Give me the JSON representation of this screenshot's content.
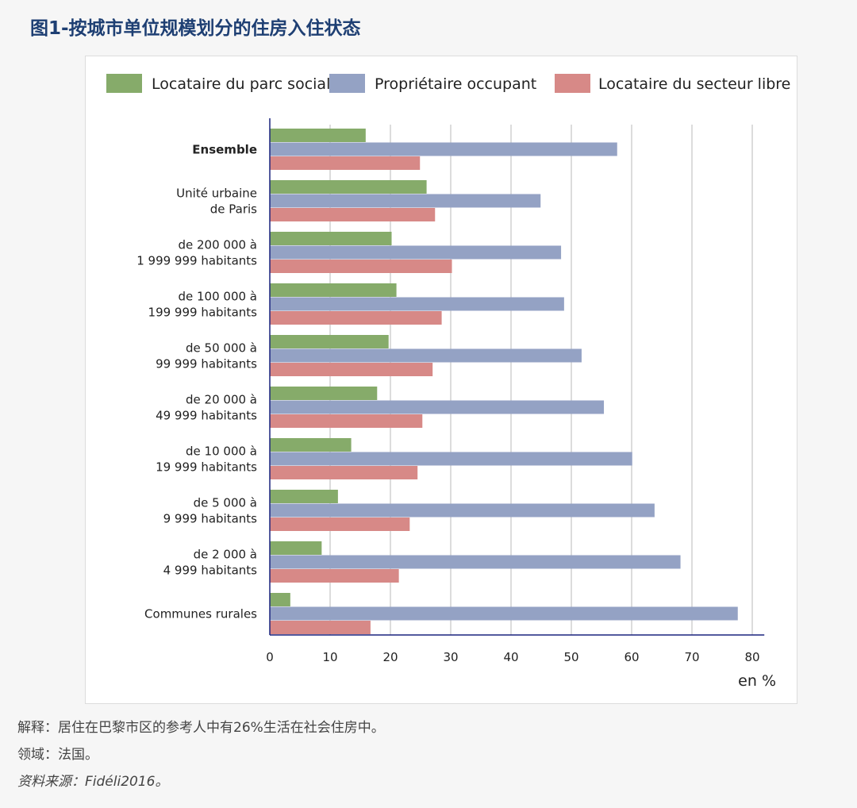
{
  "title": "图1-按城市单位规模划分的住房入住状态",
  "chart_data": {
    "type": "bar",
    "orientation": "horizontal",
    "categories": [
      "Ensemble",
      "Unité urbaine\nde Paris",
      "de 200 000 à\n1 999 999 habitants",
      "de 100 000 à\n199 999 habitants",
      "de 50 000 à\n99 999 habitants",
      "de 20 000 à\n49 999 habitants",
      "de 10 000 à\n19 999 habitants",
      "de 5 000 à\n9 999 habitants",
      "de 2 000 à\n4 999 habitants",
      "Communes rurales"
    ],
    "series": [
      {
        "name": "Locataire du parc social",
        "color": "#86ab6a",
        "values": [
          15.9,
          26.0,
          20.2,
          21.0,
          19.7,
          17.8,
          13.5,
          11.3,
          8.6,
          3.4
        ]
      },
      {
        "name": "Propriétaire occupant",
        "color": "#94a2c4",
        "values": [
          57.6,
          44.9,
          48.3,
          48.8,
          51.7,
          55.4,
          60.1,
          63.8,
          68.1,
          77.6
        ]
      },
      {
        "name": "Locataire du secteur libre",
        "color": "#d78987",
        "values": [
          24.9,
          27.4,
          30.2,
          28.5,
          27.0,
          25.3,
          24.5,
          23.2,
          21.4,
          16.7
        ]
      }
    ],
    "xlim": [
      0,
      82
    ],
    "xticks": [
      0,
      10,
      20,
      30,
      40,
      50,
      60,
      70,
      80
    ],
    "xlabel": "en %",
    "grid": true,
    "legend": "top",
    "bold_categories": [
      "Ensemble"
    ]
  },
  "notes": {
    "interpretation": "解释：居住在巴黎市区的参考人中有26%生活在社会住房中。",
    "scope": "领域：法国。",
    "source": "资料来源：Fidéli2016。"
  }
}
